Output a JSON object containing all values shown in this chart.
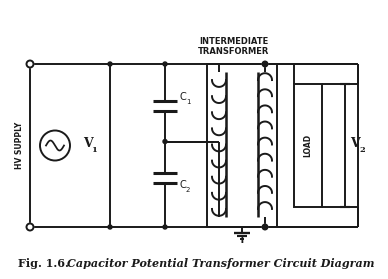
{
  "background_color": "#ffffff",
  "line_color": "#1a1a1a",
  "line_width": 1.4,
  "hv_supply_label": "HV SUPPLY",
  "v1_label": "V",
  "v1_sub": "1",
  "v2_label": "V",
  "v2_sub": "2",
  "c1_label": "C",
  "c1_sub": "1",
  "c2_label": "C",
  "c2_sub": "2",
  "load_label": "LOAD",
  "t_label": "T",
  "intermediate_line1": "INTERMEDIATE",
  "intermediate_line2": "TRANSFORMER",
  "fig_label": "Fig. 1.6.",
  "fig_italic": "Capacitor Potential Transformer Circuit Diagram"
}
